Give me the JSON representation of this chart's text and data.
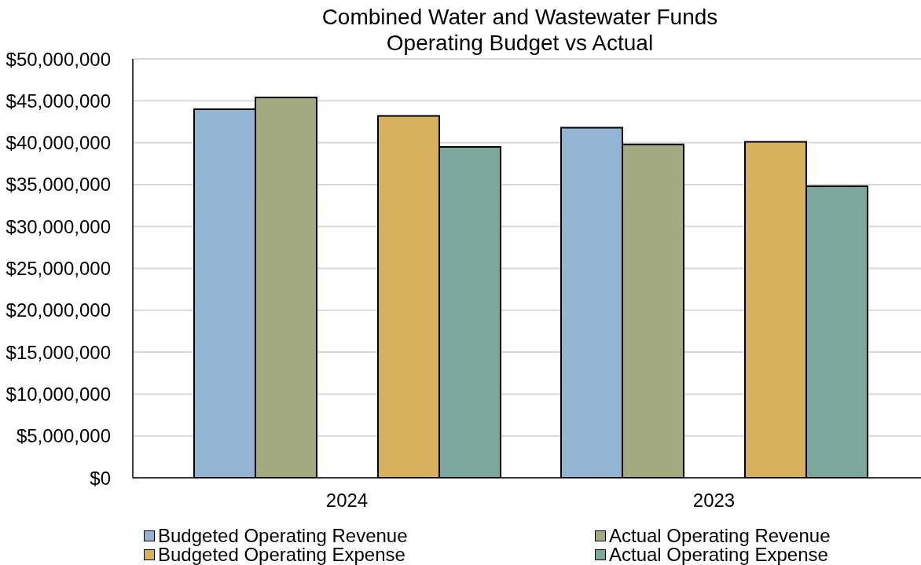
{
  "chart_data": {
    "type": "bar",
    "title": "Combined Water and Wastewater Funds",
    "subtitle": "Operating Budget vs Actual",
    "categories": [
      "2024",
      "2023"
    ],
    "series": [
      {
        "name": "Budgeted Operating Revenue",
        "color": "#94b4d4",
        "values": [
          44000000,
          41800000
        ]
      },
      {
        "name": "Actual Operating Revenue",
        "color": "#a4aa80",
        "values": [
          45400000,
          39800000
        ]
      },
      {
        "name": "Budgeted Operating Expense",
        "color": "#d8b15d",
        "values": [
          43200000,
          40100000
        ]
      },
      {
        "name": "Actual Operating Expense",
        "color": "#7ca89c",
        "values": [
          39500000,
          34800000
        ]
      }
    ],
    "ylim": [
      0,
      50000000
    ],
    "yticks": [
      {
        "value": 0,
        "label": "$0"
      },
      {
        "value": 5000000,
        "label": "$5,000,000"
      },
      {
        "value": 10000000,
        "label": "$10,000,000"
      },
      {
        "value": 15000000,
        "label": "$15,000,000"
      },
      {
        "value": 20000000,
        "label": "$20,000,000"
      },
      {
        "value": 25000000,
        "label": "$25,000,000"
      },
      {
        "value": 30000000,
        "label": "$30,000,000"
      },
      {
        "value": 35000000,
        "label": "$35,000,000"
      },
      {
        "value": 40000000,
        "label": "$40,000,000"
      },
      {
        "value": 45000000,
        "label": "$45,000,000"
      },
      {
        "value": 50000000,
        "label": "$50,000,000"
      }
    ],
    "grid": "y",
    "legend": "bottom"
  }
}
